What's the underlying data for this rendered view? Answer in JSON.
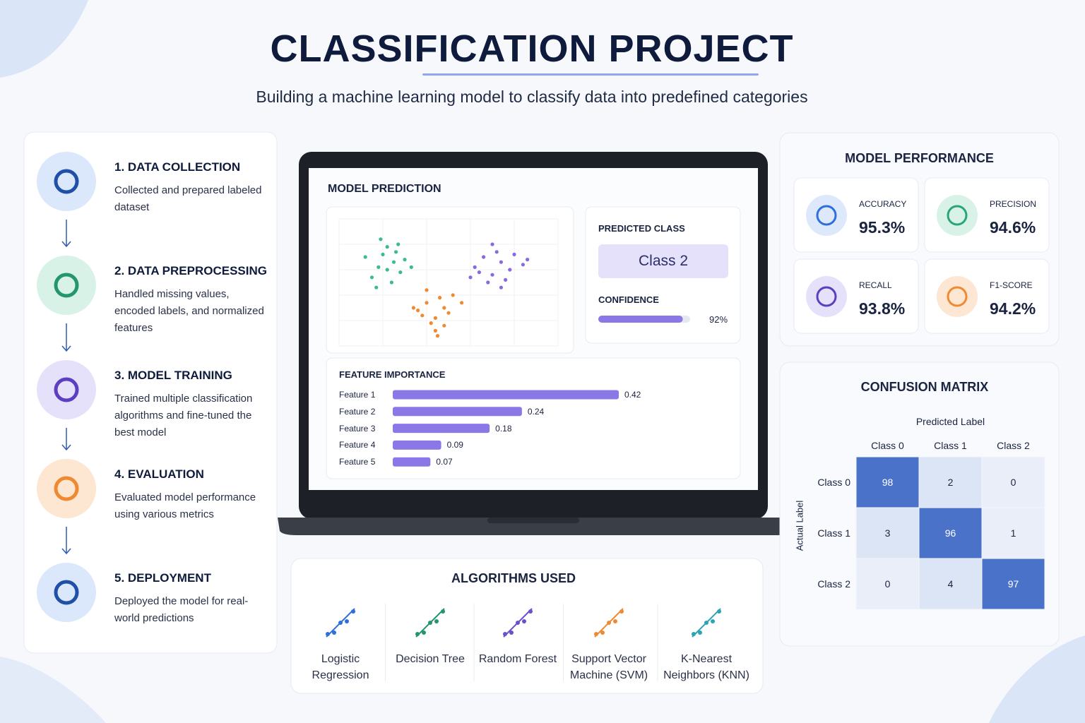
{
  "header": {
    "title": "CLASSIFICATION PROJECT",
    "subtitle": "Building a machine learning model to classify data into predefined categories"
  },
  "steps": [
    {
      "title": "1. DATA COLLECTION",
      "description": "Collected and prepared labeled dataset"
    },
    {
      "title": "2. DATA PREPROCESSING",
      "description": "Handled missing values, encoded labels, and normalized features"
    },
    {
      "title": "3. MODEL TRAINING",
      "description": "Trained multiple classification algorithms and fine-tuned the best model"
    },
    {
      "title": "4. EVALUATION",
      "description": "Evaluated model performance using various metrics"
    },
    {
      "title": "5. DEPLOYMENT",
      "description": "Deployed the model for real-world predictions"
    }
  ],
  "prediction": {
    "title": "MODEL PREDICTION",
    "predicted_class_label": "PREDICTED CLASS",
    "predicted_class": "Class 2",
    "confidence_label": "CONFIDENCE",
    "confidence": {
      "value": 92,
      "label": "92%"
    },
    "scatter": {
      "xlim": [
        0,
        100
      ],
      "ylim": [
        0,
        100
      ],
      "series": [
        {
          "color": "#3dbb8f",
          "x": [
            12,
            18,
            22,
            25,
            28,
            15,
            20,
            30,
            24,
            19,
            27,
            33,
            17,
            26,
            22
          ],
          "y": [
            70,
            62,
            78,
            66,
            58,
            54,
            72,
            68,
            50,
            84,
            80,
            62,
            46,
            74,
            60
          ]
        },
        {
          "color": "#8a68e0",
          "x": [
            62,
            66,
            70,
            74,
            78,
            72,
            68,
            80,
            84,
            64,
            76,
            70,
            86,
            74,
            60
          ],
          "y": [
            62,
            70,
            56,
            66,
            60,
            74,
            50,
            72,
            64,
            58,
            52,
            80,
            68,
            46,
            54
          ]
        },
        {
          "color": "#f08a32",
          "x": [
            36,
            40,
            44,
            48,
            42,
            38,
            46,
            50,
            52,
            34,
            44,
            40,
            48,
            56,
            45
          ],
          "y": [
            28,
            34,
            22,
            30,
            18,
            24,
            38,
            26,
            40,
            30,
            12,
            44,
            16,
            34,
            8
          ]
        }
      ]
    }
  },
  "feature_importance": {
    "title": "FEATURE IMPORTANCE",
    "categories": [
      "Feature 1",
      "Feature 2",
      "Feature 3",
      "Feature 4",
      "Feature 5"
    ],
    "values": [
      0.42,
      0.24,
      0.18,
      0.09,
      0.07
    ],
    "color": "#8b78e6"
  },
  "performance": {
    "title": "MODEL PERFORMANCE",
    "metrics": [
      {
        "name": "ACCURACY",
        "value": "95.3%"
      },
      {
        "name": "PRECISION",
        "value": "94.6%"
      },
      {
        "name": "RECALL",
        "value": "93.8%"
      },
      {
        "name": "F1-SCORE",
        "value": "94.2%"
      }
    ]
  },
  "confusion_matrix": {
    "title": "CONFUSION MATRIX",
    "x_label": "Predicted Label",
    "y_label": "Actual Label",
    "columns": [
      "Class 0",
      "Class 1",
      "Class 2"
    ],
    "rows": [
      "Class 0",
      "Class 1",
      "Class 2"
    ],
    "values": [
      [
        98,
        2,
        0
      ],
      [
        3,
        96,
        1
      ],
      [
        0,
        4,
        97
      ]
    ]
  },
  "algorithms": {
    "title": "ALGORITHMS USED",
    "items": [
      "Logistic Regression",
      "Decision Tree",
      "Random Forest",
      "Support Vector Machine (SVM)",
      "K-Nearest Neighbors (KNN)"
    ]
  }
}
